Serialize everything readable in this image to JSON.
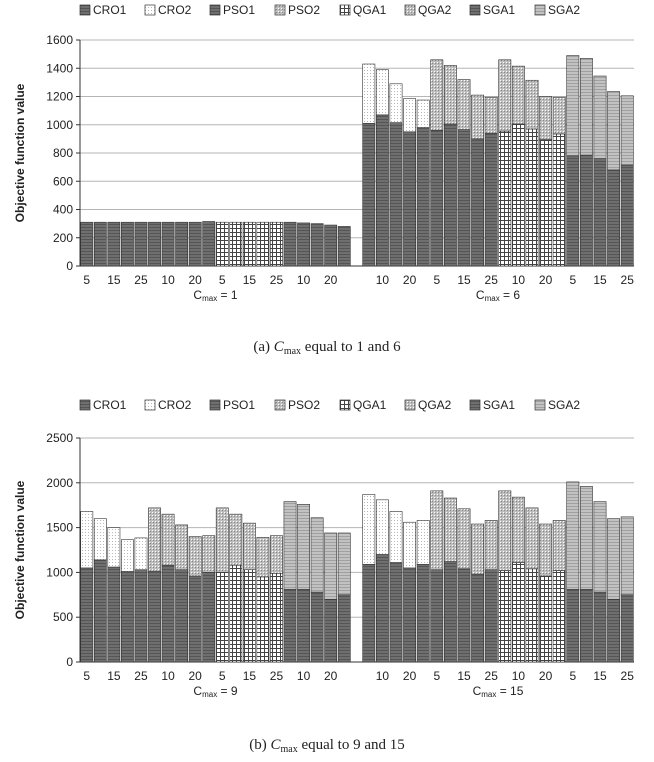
{
  "legend": [
    {
      "key": "CRO1",
      "label": "CRO1",
      "fill": "#6f6f6f",
      "pattern": "hstripe-dark"
    },
    {
      "key": "CRO2",
      "label": "CRO2",
      "fill": "#ffffff",
      "pattern": "dots-light"
    },
    {
      "key": "PSO1",
      "label": "PSO1",
      "fill": "#7a7a7a",
      "pattern": "hstripe-dark"
    },
    {
      "key": "PSO2",
      "label": "PSO2",
      "fill": "#a6a6a6",
      "pattern": "dots-mid"
    },
    {
      "key": "QGA1",
      "label": "QGA1",
      "fill": "#ffffff",
      "pattern": "grid"
    },
    {
      "key": "QGA2",
      "label": "QGA2",
      "fill": "#c8c8c8",
      "pattern": "dots-mid"
    },
    {
      "key": "SGA1",
      "label": "SGA1",
      "fill": "#666666",
      "pattern": "hstripe-dark"
    },
    {
      "key": "SGA2",
      "label": "SGA2",
      "fill": "#bdbdbd",
      "pattern": "hstripe-light"
    }
  ],
  "chart_data": [
    {
      "type": "bar",
      "stacked": true,
      "caption_prefix": "(a)",
      "caption_symbol": "C",
      "caption_subscript": "max",
      "caption_text": "equal to 1 and 6",
      "ylabel": "Objective function value",
      "ylim": [
        0,
        1600
      ],
      "yticks": [
        0,
        200,
        400,
        600,
        800,
        1000,
        1200,
        1400,
        1600
      ],
      "grid": true,
      "legend_position": "top",
      "panels": [
        {
          "group_label_prefix": "C",
          "group_label_sub": "max",
          "group_label_suffix": " = 1",
          "x_tick_labels": [
            "5",
            "15",
            "25",
            "10",
            "20",
            "5",
            "15",
            "25",
            "10",
            "20"
          ],
          "bars": [
            {
              "base": "CRO1",
              "v1": 310,
              "top": "CRO2",
              "v2": 0
            },
            {
              "base": "CRO1",
              "v1": 310,
              "top": "CRO2",
              "v2": 0
            },
            {
              "base": "CRO1",
              "v1": 310,
              "top": "CRO2",
              "v2": 0
            },
            {
              "base": "CRO1",
              "v1": 310,
              "top": "CRO2",
              "v2": 0
            },
            {
              "base": "CRO1",
              "v1": 310,
              "top": "CRO2",
              "v2": 0
            },
            {
              "base": "PSO1",
              "v1": 310,
              "top": "PSO2",
              "v2": 0
            },
            {
              "base": "PSO1",
              "v1": 310,
              "top": "PSO2",
              "v2": 0
            },
            {
              "base": "PSO1",
              "v1": 310,
              "top": "PSO2",
              "v2": 0
            },
            {
              "base": "PSO1",
              "v1": 310,
              "top": "PSO2",
              "v2": 0
            },
            {
              "base": "PSO1",
              "v1": 315,
              "top": "PSO2",
              "v2": 0
            },
            {
              "base": "QGA1",
              "v1": 310,
              "top": "QGA2",
              "v2": 0
            },
            {
              "base": "QGA1",
              "v1": 310,
              "top": "QGA2",
              "v2": 0
            },
            {
              "base": "QGA1",
              "v1": 310,
              "top": "QGA2",
              "v2": 0
            },
            {
              "base": "QGA1",
              "v1": 310,
              "top": "QGA2",
              "v2": 0
            },
            {
              "base": "QGA1",
              "v1": 310,
              "top": "QGA2",
              "v2": 0
            },
            {
              "base": "SGA1",
              "v1": 310,
              "top": "SGA2",
              "v2": 0
            },
            {
              "base": "SGA1",
              "v1": 305,
              "top": "SGA2",
              "v2": 0
            },
            {
              "base": "SGA1",
              "v1": 300,
              "top": "SGA2",
              "v2": 0
            },
            {
              "base": "SGA1",
              "v1": 290,
              "top": "SGA2",
              "v2": 0
            },
            {
              "base": "SGA1",
              "v1": 280,
              "top": "SGA2",
              "v2": 0
            }
          ]
        },
        {
          "group_label_prefix": "C",
          "group_label_sub": "max",
          "group_label_suffix": " = 6",
          "x_tick_labels": [
            "10",
            "20",
            "5",
            "15",
            "25",
            "10",
            "20",
            "5",
            "15",
            "25"
          ],
          "bars": [
            {
              "base": "CRO1",
              "v1": 1010,
              "top": "CRO2",
              "v2": 420
            },
            {
              "base": "CRO1",
              "v1": 1070,
              "top": "CRO2",
              "v2": 320
            },
            {
              "base": "CRO1",
              "v1": 1015,
              "top": "CRO2",
              "v2": 275
            },
            {
              "base": "CRO1",
              "v1": 950,
              "top": "CRO2",
              "v2": 235
            },
            {
              "base": "CRO1",
              "v1": 980,
              "top": "CRO2",
              "v2": 195
            },
            {
              "base": "PSO1",
              "v1": 960,
              "top": "PSO2",
              "v2": 500
            },
            {
              "base": "PSO1",
              "v1": 1005,
              "top": "PSO2",
              "v2": 415
            },
            {
              "base": "PSO1",
              "v1": 965,
              "top": "PSO2",
              "v2": 355
            },
            {
              "base": "PSO1",
              "v1": 900,
              "top": "PSO2",
              "v2": 310
            },
            {
              "base": "PSO1",
              "v1": 940,
              "top": "PSO2",
              "v2": 255
            },
            {
              "base": "QGA1",
              "v1": 955,
              "top": "QGA2",
              "v2": 505
            },
            {
              "base": "QGA1",
              "v1": 1005,
              "top": "QGA2",
              "v2": 410
            },
            {
              "base": "QGA1",
              "v1": 970,
              "top": "QGA2",
              "v2": 345
            },
            {
              "base": "QGA1",
              "v1": 895,
              "top": "QGA2",
              "v2": 305
            },
            {
              "base": "QGA1",
              "v1": 935,
              "top": "QGA2",
              "v2": 260
            },
            {
              "base": "SGA1",
              "v1": 780,
              "top": "SGA2",
              "v2": 710
            },
            {
              "base": "SGA1",
              "v1": 785,
              "top": "SGA2",
              "v2": 685
            },
            {
              "base": "SGA1",
              "v1": 760,
              "top": "SGA2",
              "v2": 585
            },
            {
              "base": "SGA1",
              "v1": 680,
              "top": "SGA2",
              "v2": 555
            },
            {
              "base": "SGA1",
              "v1": 715,
              "top": "SGA2",
              "v2": 490
            }
          ]
        }
      ]
    },
    {
      "type": "bar",
      "stacked": true,
      "caption_prefix": "(b)",
      "caption_symbol": "C",
      "caption_subscript": "max",
      "caption_text": "equal to 9 and 15",
      "ylabel": "Objective function value",
      "ylim": [
        0,
        2500
      ],
      "yticks": [
        0,
        500,
        1000,
        1500,
        2000,
        2500
      ],
      "grid": true,
      "legend_position": "top",
      "panels": [
        {
          "group_label_prefix": "C",
          "group_label_sub": "max",
          "group_label_suffix": " = 9",
          "x_tick_labels": [
            "5",
            "15",
            "25",
            "10",
            "20",
            "5",
            "15",
            "25",
            "10",
            "20"
          ],
          "bars": [
            {
              "base": "CRO1",
              "v1": 1050,
              "top": "CRO2",
              "v2": 630
            },
            {
              "base": "CRO1",
              "v1": 1140,
              "top": "CRO2",
              "v2": 460
            },
            {
              "base": "CRO1",
              "v1": 1060,
              "top": "CRO2",
              "v2": 440
            },
            {
              "base": "CRO1",
              "v1": 1010,
              "top": "CRO2",
              "v2": 355
            },
            {
              "base": "CRO1",
              "v1": 1030,
              "top": "CRO2",
              "v2": 355
            },
            {
              "base": "PSO1",
              "v1": 1010,
              "top": "PSO2",
              "v2": 710
            },
            {
              "base": "PSO1",
              "v1": 1080,
              "top": "PSO2",
              "v2": 570
            },
            {
              "base": "PSO1",
              "v1": 1030,
              "top": "PSO2",
              "v2": 500
            },
            {
              "base": "PSO1",
              "v1": 960,
              "top": "PSO2",
              "v2": 440
            },
            {
              "base": "PSO1",
              "v1": 1000,
              "top": "PSO2",
              "v2": 410
            },
            {
              "base": "QGA1",
              "v1": 1000,
              "top": "QGA2",
              "v2": 720
            },
            {
              "base": "QGA1",
              "v1": 1080,
              "top": "QGA2",
              "v2": 570
            },
            {
              "base": "QGA1",
              "v1": 1030,
              "top": "QGA2",
              "v2": 520
            },
            {
              "base": "QGA1",
              "v1": 950,
              "top": "QGA2",
              "v2": 440
            },
            {
              "base": "QGA1",
              "v1": 990,
              "top": "QGA2",
              "v2": 420
            },
            {
              "base": "SGA1",
              "v1": 810,
              "top": "SGA2",
              "v2": 980
            },
            {
              "base": "SGA1",
              "v1": 810,
              "top": "SGA2",
              "v2": 950
            },
            {
              "base": "SGA1",
              "v1": 780,
              "top": "SGA2",
              "v2": 830
            },
            {
              "base": "SGA1",
              "v1": 700,
              "top": "SGA2",
              "v2": 740
            },
            {
              "base": "SGA1",
              "v1": 750,
              "top": "SGA2",
              "v2": 690
            }
          ]
        },
        {
          "group_label_prefix": "C",
          "group_label_sub": "max",
          "group_label_suffix": " = 15",
          "x_tick_labels": [
            "10",
            "20",
            "5",
            "15",
            "25",
            "10",
            "20",
            "5",
            "15",
            "25"
          ],
          "bars": [
            {
              "base": "CRO1",
              "v1": 1090,
              "top": "CRO2",
              "v2": 780
            },
            {
              "base": "CRO1",
              "v1": 1200,
              "top": "CRO2",
              "v2": 610
            },
            {
              "base": "CRO1",
              "v1": 1110,
              "top": "CRO2",
              "v2": 570
            },
            {
              "base": "CRO1",
              "v1": 1050,
              "top": "CRO2",
              "v2": 510
            },
            {
              "base": "CRO1",
              "v1": 1090,
              "top": "CRO2",
              "v2": 490
            },
            {
              "base": "PSO1",
              "v1": 1030,
              "top": "PSO2",
              "v2": 880
            },
            {
              "base": "PSO1",
              "v1": 1120,
              "top": "PSO2",
              "v2": 710
            },
            {
              "base": "PSO1",
              "v1": 1040,
              "top": "PSO2",
              "v2": 670
            },
            {
              "base": "PSO1",
              "v1": 980,
              "top": "PSO2",
              "v2": 560
            },
            {
              "base": "PSO1",
              "v1": 1030,
              "top": "PSO2",
              "v2": 550
            },
            {
              "base": "QGA1",
              "v1": 1020,
              "top": "QGA2",
              "v2": 890
            },
            {
              "base": "QGA1",
              "v1": 1110,
              "top": "QGA2",
              "v2": 730
            },
            {
              "base": "QGA1",
              "v1": 1040,
              "top": "QGA2",
              "v2": 680
            },
            {
              "base": "QGA1",
              "v1": 960,
              "top": "QGA2",
              "v2": 580
            },
            {
              "base": "QGA1",
              "v1": 1020,
              "top": "QGA2",
              "v2": 560
            },
            {
              "base": "SGA1",
              "v1": 810,
              "top": "SGA2",
              "v2": 1200
            },
            {
              "base": "SGA1",
              "v1": 810,
              "top": "SGA2",
              "v2": 1150
            },
            {
              "base": "SGA1",
              "v1": 780,
              "top": "SGA2",
              "v2": 1010
            },
            {
              "base": "SGA1",
              "v1": 700,
              "top": "SGA2",
              "v2": 900
            },
            {
              "base": "SGA1",
              "v1": 750,
              "top": "SGA2",
              "v2": 870
            }
          ]
        }
      ]
    }
  ]
}
